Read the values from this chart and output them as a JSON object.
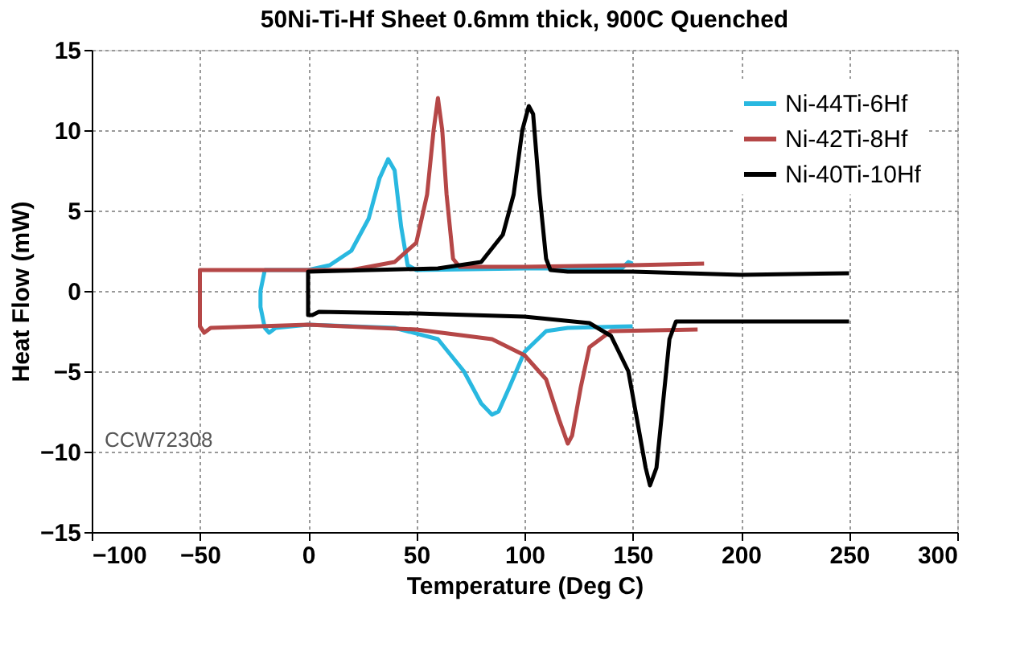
{
  "chart_data": {
    "type": "line",
    "title": "50Ni-Ti-Hf  Sheet 0.6mm thick, 900C Quenched",
    "xlabel": "Temperature (Deg C)",
    "ylabel": "Heat Flow (mW)",
    "xlim": [
      -100,
      300
    ],
    "xticks": [
      -100,
      -50,
      0,
      50,
      100,
      150,
      200,
      250,
      300
    ],
    "ylim": [
      -15,
      15
    ],
    "yticks": [
      -15,
      -10,
      -5,
      0,
      5,
      10,
      15
    ],
    "grid": true,
    "legend": "top right",
    "line_style": "solid",
    "marker": "none",
    "annotations": [
      "CCW72308"
    ],
    "series": [
      {
        "name": "Ni-44Ti-6Hf",
        "color": "#29b8e0",
        "x": [
          150,
          148,
          145,
          100,
          50,
          46,
          43,
          40,
          37,
          33,
          28,
          20,
          10,
          0,
          -20,
          -22,
          -22,
          -20,
          -18,
          -15,
          0,
          40,
          60,
          72,
          80,
          85,
          88,
          93,
          100,
          110,
          120,
          150
        ],
        "values": [
          1.7,
          1.8,
          1.4,
          1.4,
          1.3,
          1.6,
          4,
          7.5,
          8.2,
          7,
          4.5,
          2.5,
          1.6,
          1.3,
          1.3,
          0,
          -1,
          -2.3,
          -2.6,
          -2.3,
          -2.1,
          -2.3,
          -3,
          -5,
          -7,
          -7.7,
          -7.5,
          -6,
          -3.8,
          -2.5,
          -2.3,
          -2.2
        ]
      },
      {
        "name": "Ni-42Ti-8Hf",
        "color": "#b54747",
        "x": [
          183,
          150,
          100,
          70,
          67,
          64,
          62,
          60,
          58,
          55,
          50,
          40,
          20,
          -50,
          -50,
          -48,
          -45,
          0,
          50,
          85,
          100,
          110,
          116,
          120,
          122,
          126,
          130,
          140,
          180
        ],
        "values": [
          1.7,
          1.6,
          1.5,
          1.5,
          2,
          6,
          10,
          12,
          10,
          6,
          3,
          1.8,
          1.3,
          1.3,
          -2.2,
          -2.6,
          -2.3,
          -2.1,
          -2.4,
          -3,
          -4,
          -5.5,
          -8,
          -9.5,
          -9,
          -6,
          -3.5,
          -2.5,
          -2.4
        ]
      },
      {
        "name": "Ni-40Ti-10Hf",
        "color": "#000000",
        "x": [
          250,
          200,
          150,
          120,
          112,
          110,
          107,
          104,
          102,
          99,
          95,
          90,
          80,
          60,
          0,
          0,
          2,
          5,
          50,
          100,
          130,
          140,
          148,
          152,
          156,
          158,
          161,
          164,
          167,
          170,
          200,
          250
        ],
        "values": [
          1.1,
          1,
          1.2,
          1.2,
          1.3,
          2,
          6,
          11,
          11.5,
          10,
          6,
          3.5,
          1.8,
          1.4,
          1.2,
          -1.5,
          -1.5,
          -1.3,
          -1.4,
          -1.6,
          -2,
          -2.8,
          -5,
          -8,
          -11,
          -12.1,
          -11,
          -7,
          -3,
          -1.9,
          -1.9,
          -1.9
        ]
      }
    ]
  }
}
